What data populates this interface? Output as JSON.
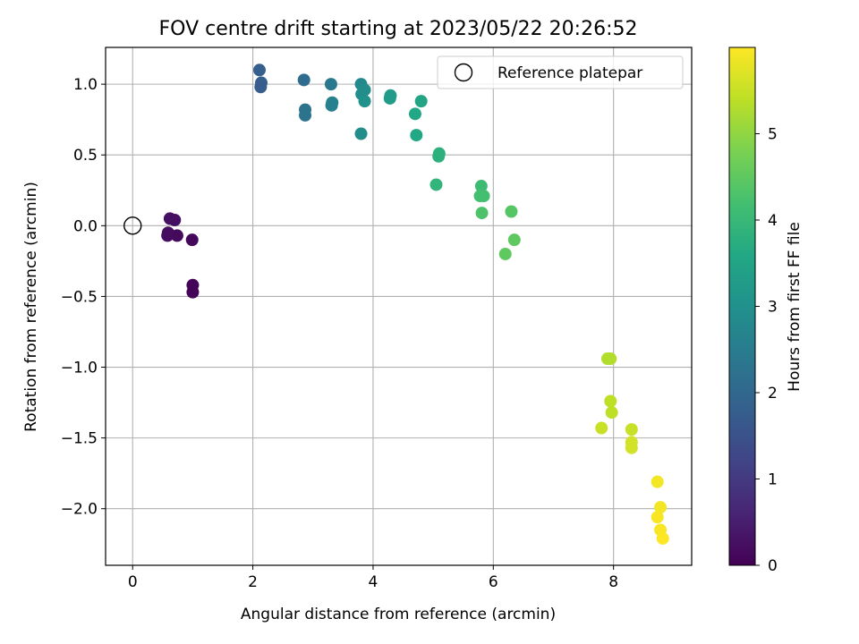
{
  "chart_data": {
    "type": "scatter",
    "title": "FOV centre drift starting at 2023/05/22 20:26:52",
    "xlabel": "Angular distance from reference (arcmin)",
    "ylabel": "Rotation from reference (arcmin)",
    "xlim": [
      -0.45,
      9.3
    ],
    "ylim": [
      -2.4,
      1.26
    ],
    "xticks": [
      0,
      2,
      4,
      6,
      8
    ],
    "yticks": [
      -2.0,
      -1.5,
      -1.0,
      -0.5,
      0.0,
      0.5,
      1.0
    ],
    "xtick_labels": [
      "0",
      "2",
      "4",
      "6",
      "8"
    ],
    "ytick_labels": [
      "−2.0",
      "−1.5",
      "−1.0",
      "−0.5",
      "0.0",
      "0.5",
      "1.0"
    ],
    "grid": true,
    "legend": {
      "position": "top-right",
      "entries": [
        "Reference platepar"
      ]
    },
    "reference_point": {
      "label": "Reference platepar",
      "x": 0,
      "y": 0
    },
    "colorbar": {
      "label": "Hours from first FF file",
      "colormap": "viridis",
      "range": [
        0,
        6.0
      ],
      "ticks": [
        0,
        1,
        2,
        3,
        4,
        5
      ],
      "tick_labels": [
        "0",
        "1",
        "2",
        "3",
        "4",
        "5"
      ]
    },
    "points": [
      {
        "x": 0.62,
        "y": 0.05,
        "c": 0.25
      },
      {
        "x": 0.7,
        "y": 0.04,
        "c": 0.25
      },
      {
        "x": 0.59,
        "y": -0.05,
        "c": 0.2
      },
      {
        "x": 0.58,
        "y": -0.07,
        "c": 0.2
      },
      {
        "x": 0.74,
        "y": -0.07,
        "c": 0.15
      },
      {
        "x": 0.99,
        "y": -0.1,
        "c": 0.1
      },
      {
        "x": 1.0,
        "y": -0.42,
        "c": 0.05
      },
      {
        "x": 1.0,
        "y": -0.47,
        "c": 0.05
      },
      {
        "x": 2.11,
        "y": 1.1,
        "c": 1.8
      },
      {
        "x": 2.14,
        "y": 1.01,
        "c": 1.8
      },
      {
        "x": 2.13,
        "y": 0.98,
        "c": 1.75
      },
      {
        "x": 2.85,
        "y": 1.03,
        "c": 2.1
      },
      {
        "x": 2.87,
        "y": 0.82,
        "c": 2.3
      },
      {
        "x": 2.87,
        "y": 0.78,
        "c": 2.3
      },
      {
        "x": 3.3,
        "y": 1.0,
        "c": 2.4
      },
      {
        "x": 3.32,
        "y": 0.87,
        "c": 2.6
      },
      {
        "x": 3.31,
        "y": 0.85,
        "c": 2.6
      },
      {
        "x": 3.8,
        "y": 1.0,
        "c": 2.8
      },
      {
        "x": 3.81,
        "y": 0.93,
        "c": 2.9
      },
      {
        "x": 3.86,
        "y": 0.96,
        "c": 2.9
      },
      {
        "x": 3.86,
        "y": 0.88,
        "c": 3.0
      },
      {
        "x": 3.8,
        "y": 0.65,
        "c": 2.9
      },
      {
        "x": 4.29,
        "y": 0.92,
        "c": 3.3
      },
      {
        "x": 4.28,
        "y": 0.9,
        "c": 3.3
      },
      {
        "x": 4.8,
        "y": 0.88,
        "c": 3.5
      },
      {
        "x": 4.7,
        "y": 0.79,
        "c": 3.6
      },
      {
        "x": 4.72,
        "y": 0.64,
        "c": 3.6
      },
      {
        "x": 5.1,
        "y": 0.51,
        "c": 3.8
      },
      {
        "x": 5.09,
        "y": 0.49,
        "c": 3.8
      },
      {
        "x": 5.05,
        "y": 0.29,
        "c": 3.9
      },
      {
        "x": 5.8,
        "y": 0.28,
        "c": 4.1
      },
      {
        "x": 5.78,
        "y": 0.21,
        "c": 4.2
      },
      {
        "x": 5.84,
        "y": 0.21,
        "c": 4.2
      },
      {
        "x": 5.81,
        "y": 0.09,
        "c": 4.3
      },
      {
        "x": 6.3,
        "y": 0.1,
        "c": 4.4
      },
      {
        "x": 6.35,
        "y": -0.1,
        "c": 4.5
      },
      {
        "x": 6.2,
        "y": -0.2,
        "c": 4.5
      },
      {
        "x": 7.9,
        "y": -0.94,
        "c": 5.3
      },
      {
        "x": 7.95,
        "y": -0.94,
        "c": 5.3
      },
      {
        "x": 7.95,
        "y": -1.24,
        "c": 5.4
      },
      {
        "x": 7.97,
        "y": -1.32,
        "c": 5.4
      },
      {
        "x": 7.8,
        "y": -1.43,
        "c": 5.5
      },
      {
        "x": 8.3,
        "y": -1.44,
        "c": 5.5
      },
      {
        "x": 8.3,
        "y": -1.53,
        "c": 5.6
      },
      {
        "x": 8.3,
        "y": -1.57,
        "c": 5.6
      },
      {
        "x": 8.73,
        "y": -1.81,
        "c": 5.9
      },
      {
        "x": 8.78,
        "y": -1.99,
        "c": 5.9
      },
      {
        "x": 8.73,
        "y": -2.06,
        "c": 5.95
      },
      {
        "x": 8.78,
        "y": -2.15,
        "c": 5.95
      },
      {
        "x": 8.82,
        "y": -2.21,
        "c": 6.0
      }
    ]
  }
}
